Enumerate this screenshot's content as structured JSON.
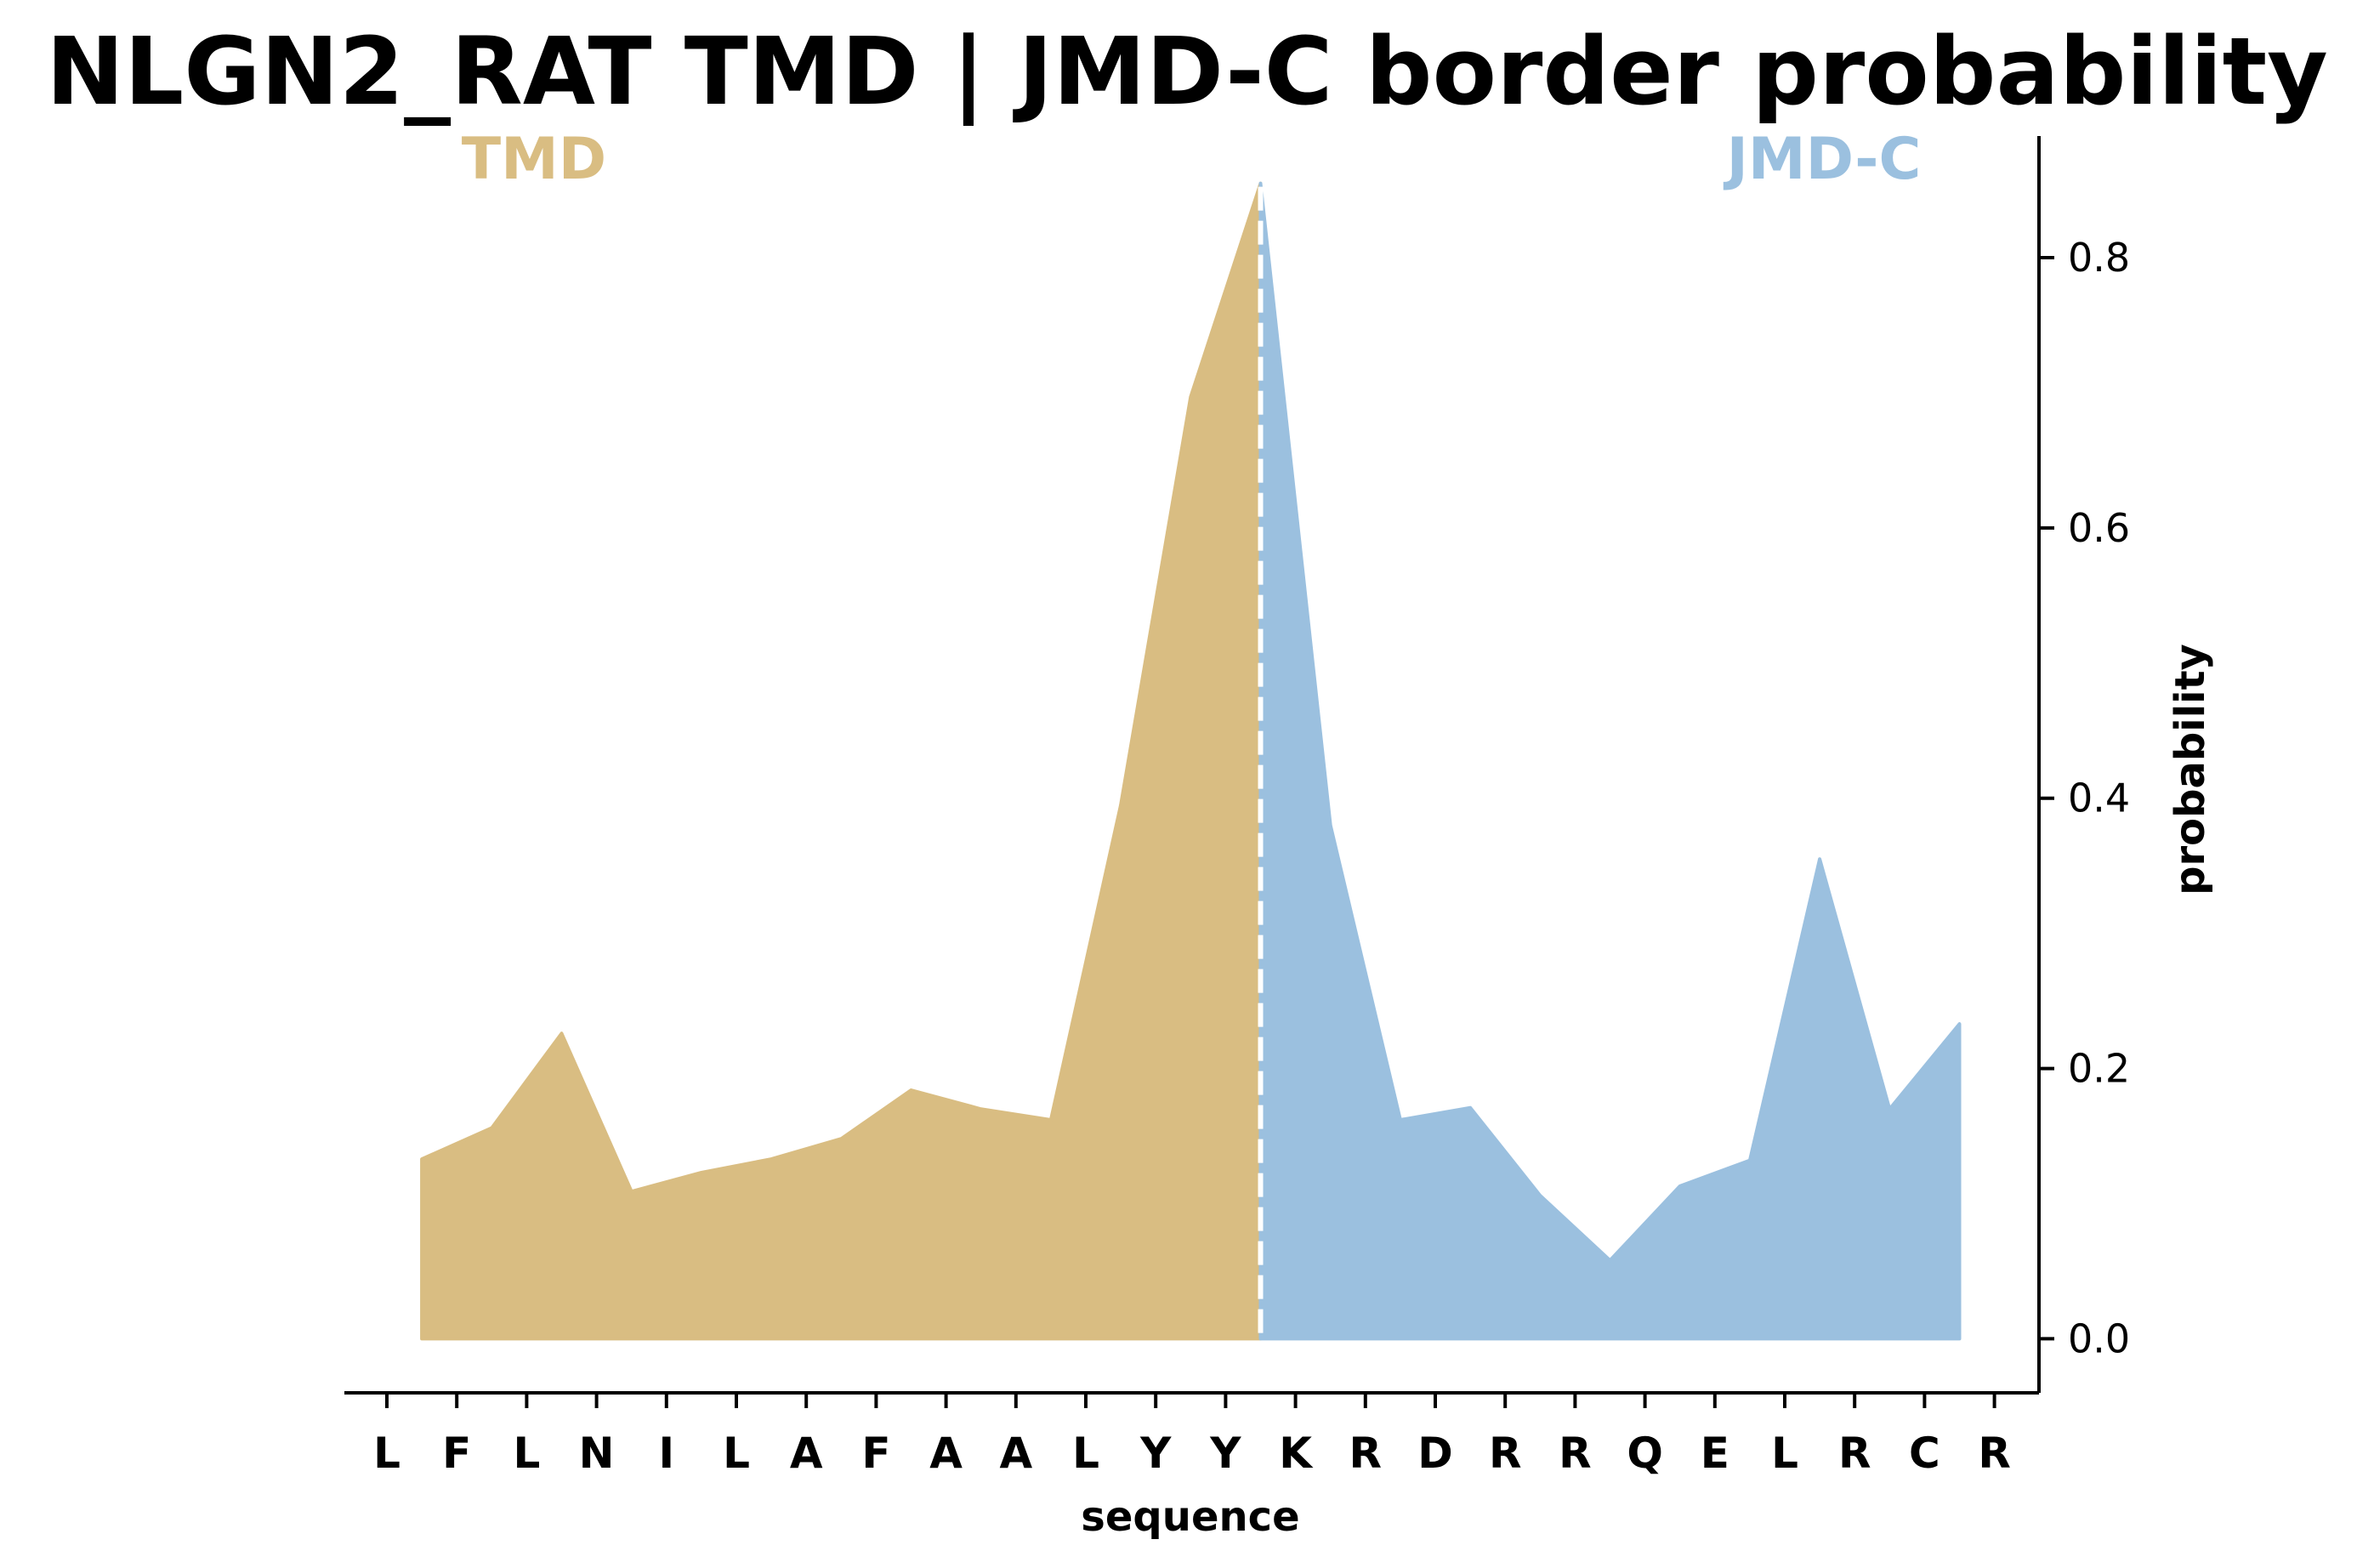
{
  "chart_data": {
    "type": "area",
    "title": "NLGN2_RAT TMD | JMD-C border probability",
    "xlabel": "sequence",
    "ylabel": "probability",
    "ylim": [
      -0.04,
      0.89
    ],
    "yticks": [
      0.0,
      0.2,
      0.4,
      0.6,
      0.8
    ],
    "ytick_labels": [
      "0.0",
      "0.2",
      "0.4",
      "0.6",
      "0.8"
    ],
    "yaxis_position": "right",
    "grid": false,
    "legend": "none",
    "sequence": [
      "L",
      "F",
      "L",
      "N",
      "I",
      "L",
      "A",
      "F",
      "A",
      "A",
      "L",
      "Y",
      "Y",
      "K",
      "R",
      "D",
      "R",
      "R",
      "Q",
      "E",
      "L",
      "R",
      "C",
      "R"
    ],
    "x": [
      0.5,
      1.5,
      2.5,
      3.5,
      4.5,
      5.5,
      6.5,
      7.5,
      8.5,
      9.5,
      10.5,
      11.5,
      12.5,
      13.5,
      14.5,
      15.5,
      16.5,
      17.5,
      18.5,
      19.5,
      20.5,
      21.5,
      22.5
    ],
    "y": [
      0.133,
      0.156,
      0.226,
      0.109,
      0.123,
      0.133,
      0.148,
      0.184,
      0.17,
      0.162,
      0.395,
      0.697,
      0.855,
      0.38,
      0.162,
      0.171,
      0.106,
      0.058,
      0.113,
      0.132,
      0.355,
      0.17,
      0.233
    ],
    "border_x": 12.5,
    "regions": [
      {
        "label": "TMD",
        "color": "#d9bd82"
      },
      {
        "label": "JMD-C",
        "color": "#9bc0df"
      }
    ]
  }
}
